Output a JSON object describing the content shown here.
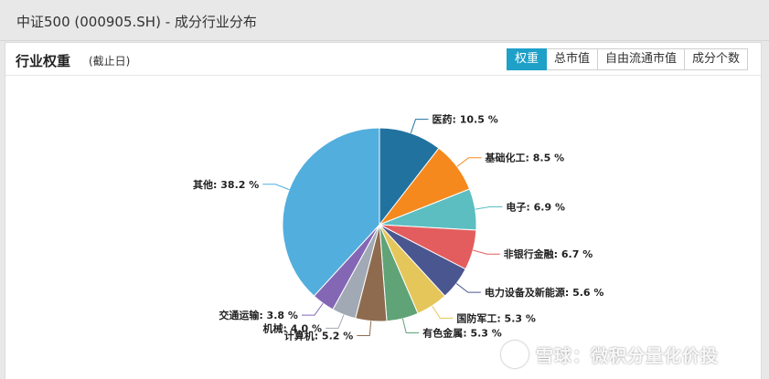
{
  "page": {
    "title": "中证500 (000905.SH) - 成分行业分布"
  },
  "panel": {
    "title": "行业权重",
    "subtitle": "(截止日)",
    "tabs": [
      {
        "label": "权重",
        "active": true
      },
      {
        "label": "总市值",
        "active": false
      },
      {
        "label": "自由流通市值",
        "active": false
      },
      {
        "label": "成分个数",
        "active": false
      }
    ]
  },
  "watermark": {
    "text": "雪球：微积分量化价投"
  },
  "chart_data": {
    "type": "pie",
    "unit": "%",
    "slices": [
      {
        "name": "医药",
        "value": 10.5,
        "color": "#2272a0"
      },
      {
        "name": "基础化工",
        "value": 8.5,
        "color": "#f5891d"
      },
      {
        "name": "电子",
        "value": 6.9,
        "color": "#5cbec1"
      },
      {
        "name": "非银行金融",
        "value": 6.7,
        "color": "#e35d5e"
      },
      {
        "name": "电力设备及新能源",
        "value": 5.6,
        "color": "#4a5690"
      },
      {
        "name": "国防军工",
        "value": 5.3,
        "color": "#e5c65a"
      },
      {
        "name": "有色金属",
        "value": 5.3,
        "color": "#5fa377"
      },
      {
        "name": "计算机",
        "value": 5.2,
        "color": "#8e6b4f"
      },
      {
        "name": "机械",
        "value": 4.0,
        "color": "#a1a9b4"
      },
      {
        "name": "交通运输",
        "value": 3.8,
        "color": "#8467b4"
      },
      {
        "name": "其他",
        "value": 38.2,
        "color": "#52aedd"
      }
    ]
  }
}
